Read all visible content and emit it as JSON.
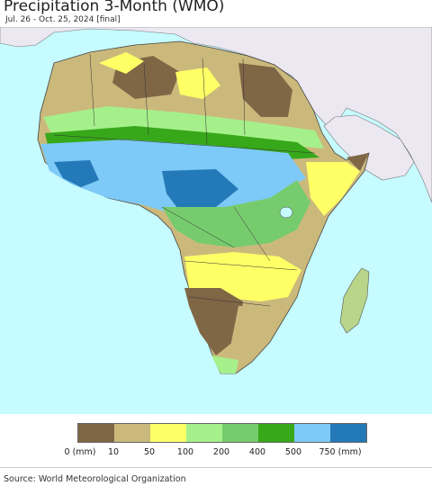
{
  "title": "Precipitation 3-Month (WMO)",
  "subtitle": "Jul. 26 - Oct. 25, 2024 [final]",
  "legend": {
    "colors": [
      "#7f6746",
      "#cbb97c",
      "#ffff66",
      "#a6f08c",
      "#76cc6d",
      "#37a81a",
      "#7dc9f7",
      "#2479b8"
    ],
    "labels": [
      "0 (mm)",
      "10",
      "50",
      "100",
      "200",
      "400",
      "500",
      "750 (mm)"
    ]
  },
  "source": "Source: World Meteorological Organization"
}
